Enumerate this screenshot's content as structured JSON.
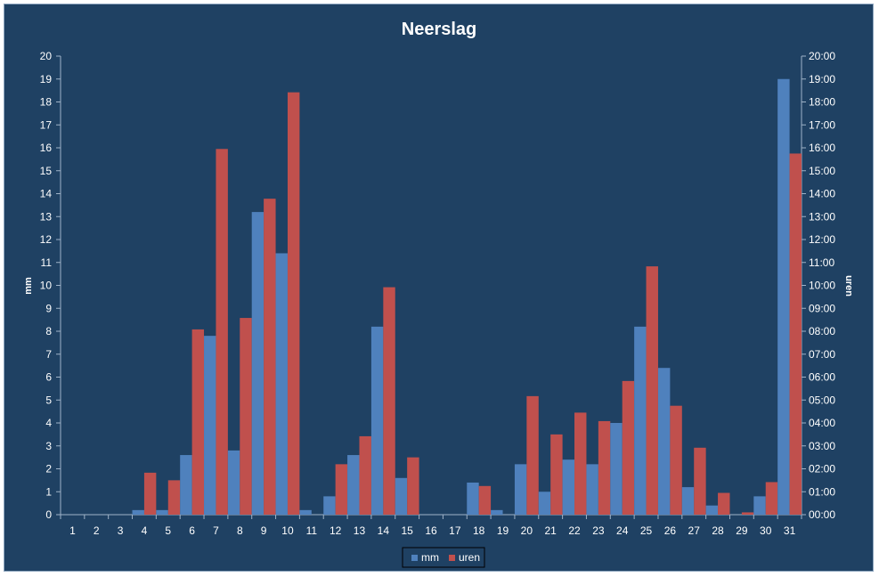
{
  "chart_data": {
    "type": "bar",
    "title": "Neerslag",
    "categories": [
      "1",
      "2",
      "3",
      "4",
      "5",
      "6",
      "7",
      "8",
      "9",
      "10",
      "11",
      "12",
      "13",
      "14",
      "15",
      "16",
      "17",
      "18",
      "19",
      "20",
      "21",
      "22",
      "23",
      "24",
      "25",
      "26",
      "27",
      "28",
      "29",
      "30",
      "31"
    ],
    "series": [
      {
        "name": "mm",
        "axis": "left",
        "color": "#4f81bd",
        "values": [
          0,
          0,
          0,
          0.2,
          0.2,
          2.6,
          7.8,
          2.8,
          13.2,
          11.4,
          0.2,
          0.8,
          2.6,
          8.2,
          1.6,
          0,
          0,
          1.4,
          0.2,
          2.2,
          1.0,
          2.4,
          2.2,
          4.0,
          8.2,
          6.4,
          1.2,
          0.4,
          0,
          0.8,
          19.0
        ]
      },
      {
        "name": "uren",
        "axis": "right",
        "color": "#c0504d",
        "values_hours": [
          0,
          0,
          0,
          1.83,
          1.5,
          8.08,
          15.95,
          8.58,
          13.78,
          18.42,
          0,
          2.2,
          3.42,
          9.92,
          2.5,
          0,
          0,
          1.25,
          0,
          5.17,
          3.5,
          4.45,
          4.08,
          5.83,
          10.83,
          4.75,
          2.92,
          0.95,
          0.1,
          1.42,
          15.75
        ]
      }
    ],
    "left_axis": {
      "label": "mm",
      "ylim": [
        0,
        20
      ],
      "ticks": [
        "0",
        "1",
        "2",
        "3",
        "4",
        "5",
        "6",
        "7",
        "8",
        "9",
        "10",
        "11",
        "12",
        "13",
        "14",
        "15",
        "16",
        "17",
        "18",
        "19",
        "20"
      ]
    },
    "right_axis": {
      "label": "uren",
      "ylim": [
        0,
        20
      ],
      "ticks": [
        "00:00",
        "01:00",
        "02:00",
        "03:00",
        "04:00",
        "05:00",
        "06:00",
        "07:00",
        "08:00",
        "09:00",
        "10:00",
        "11:00",
        "12:00",
        "13:00",
        "14:00",
        "15:00",
        "16:00",
        "17:00",
        "18:00",
        "19:00",
        "20:00"
      ]
    },
    "legend": {
      "position": "bottom",
      "items": [
        "mm",
        "uren"
      ]
    },
    "grid": false
  },
  "colors": {
    "background": "#1f4163",
    "text": "#ffffff",
    "axis": "#9fb3c8"
  }
}
